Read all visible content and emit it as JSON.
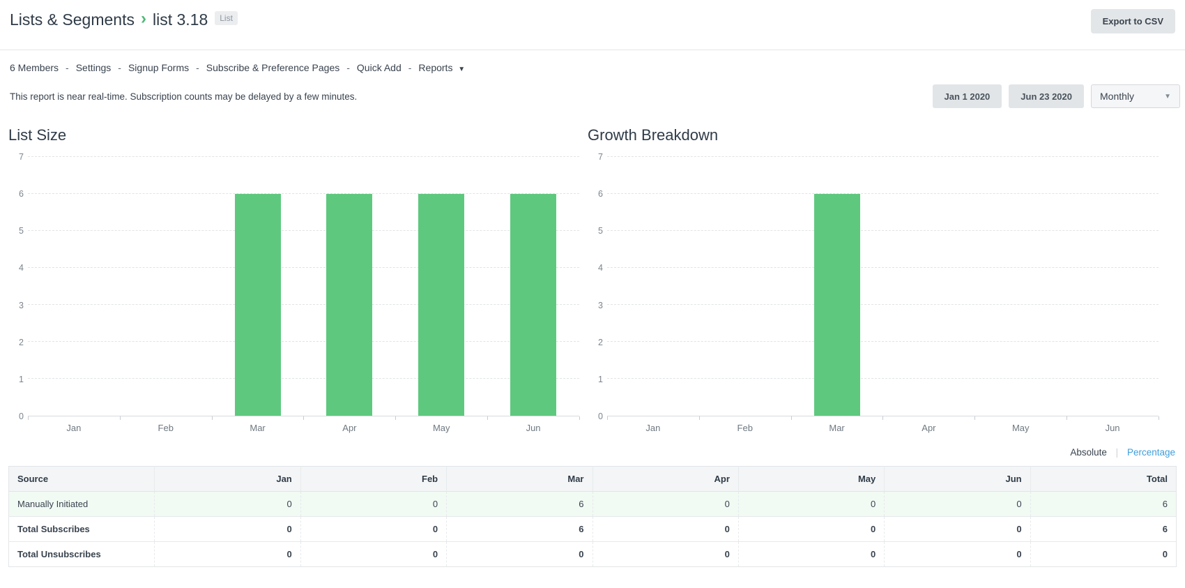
{
  "header": {
    "breadcrumb_root": "Lists & Segments",
    "breadcrumb_separator": "›",
    "breadcrumb_current": "list 3.18",
    "type_badge": "List",
    "export_button": "Export to CSV"
  },
  "nav": {
    "items": [
      "6 Members",
      "Settings",
      "Signup Forms",
      "Subscribe & Preference Pages",
      "Quick Add",
      "Reports"
    ],
    "dropdown_item": "Reports",
    "separator": "-"
  },
  "note": "This report is near real-time. Subscription counts may be delayed by a few minutes.",
  "controls": {
    "start_date": "Jan 1 2020",
    "end_date": "Jun 23 2020",
    "interval": "Monthly"
  },
  "colors": {
    "bar_green": "#5ec97e",
    "breadcrumb_chevron_green": "#4eb877",
    "link_blue": "#3e9edb",
    "row_tint_green": "#f2faf4",
    "cell_highlight_green": "#d7efdc",
    "button_gray": "#e3e6e8"
  },
  "chart_data": [
    {
      "type": "bar",
      "title": "List Size",
      "categories": [
        "Jan",
        "Feb",
        "Mar",
        "Apr",
        "May",
        "Jun"
      ],
      "values": [
        0,
        0,
        6,
        6,
        6,
        6
      ],
      "ylim": [
        0,
        7
      ],
      "yticks": [
        0,
        1,
        2,
        3,
        4,
        5,
        6,
        7
      ],
      "xlabel": "",
      "ylabel": "",
      "grid": "horizontal-dashed",
      "legend": "none",
      "bar_color": "#5ec97e"
    },
    {
      "type": "bar",
      "title": "Growth Breakdown",
      "categories": [
        "Jan",
        "Feb",
        "Mar",
        "Apr",
        "May",
        "Jun"
      ],
      "values": [
        0,
        0,
        6,
        0,
        0,
        0
      ],
      "ylim": [
        0,
        7
      ],
      "yticks": [
        0,
        1,
        2,
        3,
        4,
        5,
        6,
        7
      ],
      "xlabel": "",
      "ylabel": "",
      "grid": "horizontal-dashed",
      "legend": "none",
      "bar_color": "#5ec97e"
    }
  ],
  "toggle": {
    "absolute_label": "Absolute",
    "separator": "|",
    "percentage_label": "Percentage"
  },
  "table": {
    "columns": [
      "Source",
      "Jan",
      "Feb",
      "Mar",
      "Apr",
      "May",
      "Jun",
      "Total"
    ],
    "rows": [
      {
        "label": "Manually Initiated",
        "values": [
          0,
          0,
          6,
          0,
          0,
          0,
          6
        ],
        "bold": false,
        "tint": true,
        "highlight_value_index": 2
      },
      {
        "label": "Total Subscribes",
        "values": [
          0,
          0,
          6,
          0,
          0,
          0,
          6
        ],
        "bold": true,
        "tint": false,
        "highlight_value_index": -1
      },
      {
        "label": "Total Unsubscribes",
        "values": [
          0,
          0,
          0,
          0,
          0,
          0,
          0
        ],
        "bold": true,
        "tint": false,
        "highlight_value_index": -1
      }
    ]
  }
}
